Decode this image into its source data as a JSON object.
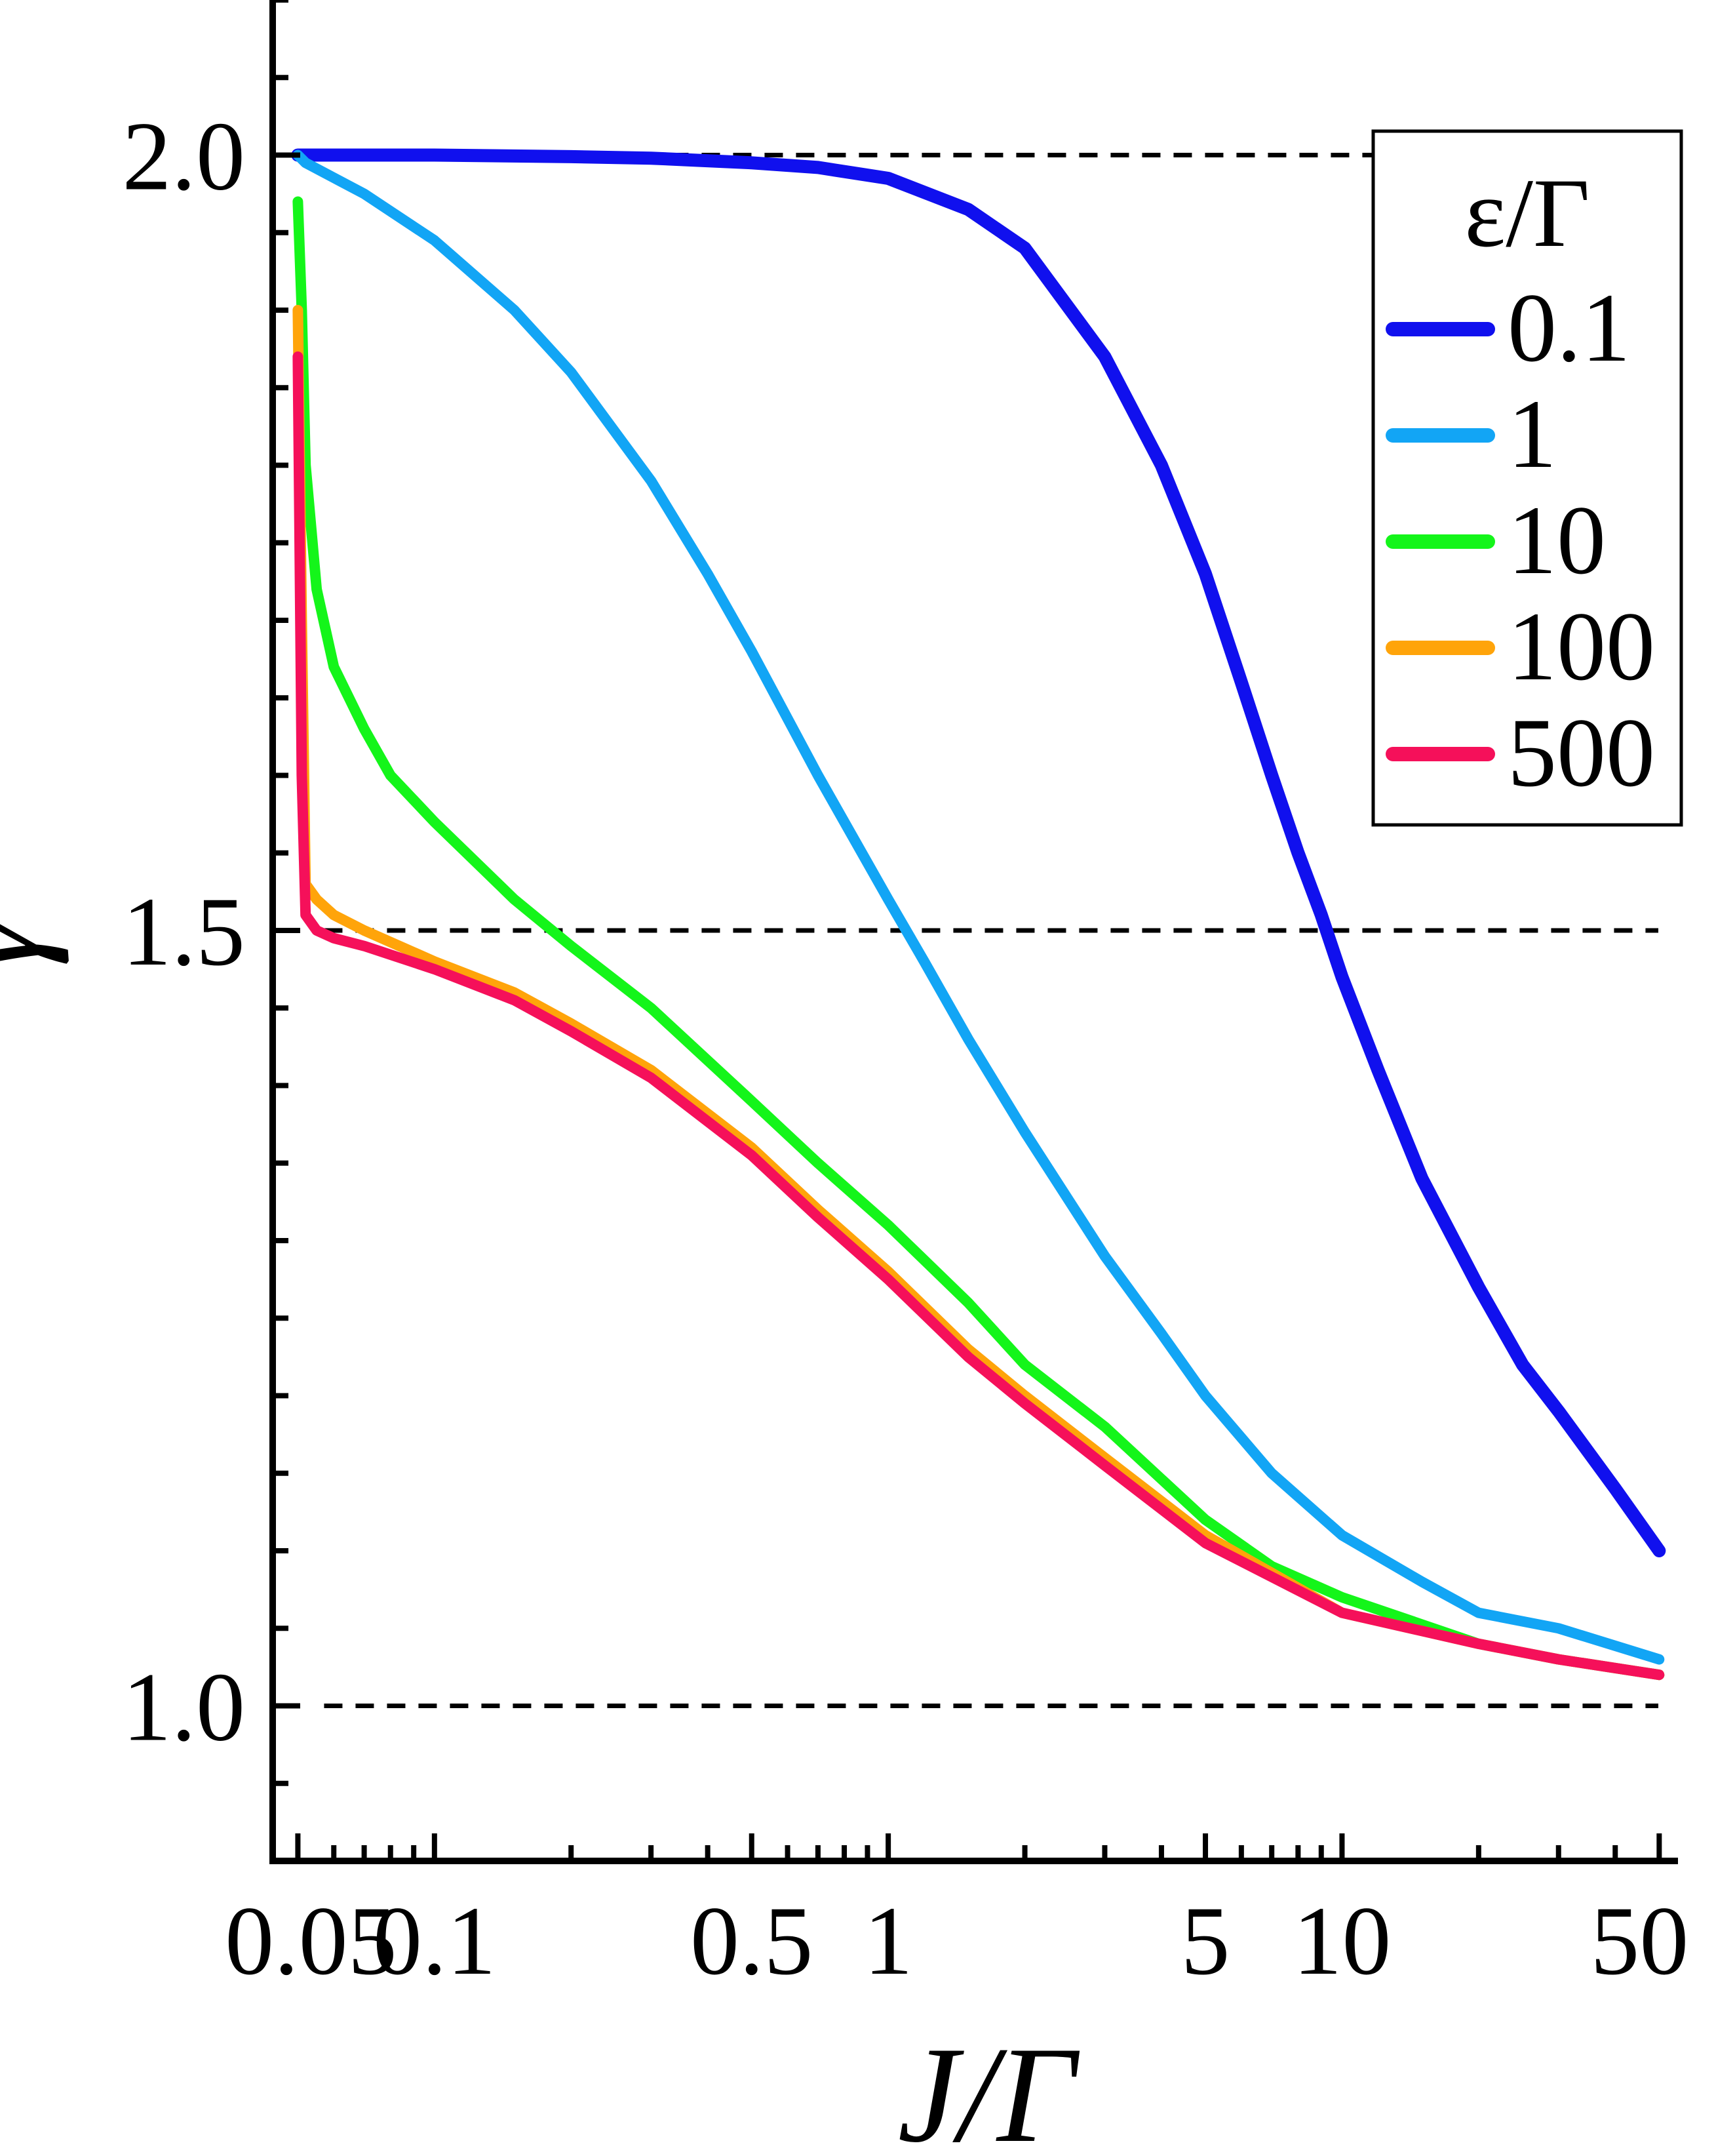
{
  "chart_data": {
    "type": "line",
    "xlabel": "J/Γ",
    "ylabel": "γ",
    "xscale": "log",
    "xlim": [
      0.044,
      55
    ],
    "ylim": [
      0.9,
      2.1
    ],
    "x_ticks": [
      {
        "value": 0.05,
        "label": "0.05"
      },
      {
        "value": 0.1,
        "label": "0.1"
      },
      {
        "value": 0.5,
        "label": "0.5"
      },
      {
        "value": 1,
        "label": "1"
      },
      {
        "value": 5,
        "label": "5"
      },
      {
        "value": 10,
        "label": "10"
      },
      {
        "value": 50,
        "label": "50"
      }
    ],
    "y_ticks": [
      {
        "value": 1.0,
        "label": "1.0"
      },
      {
        "value": 1.5,
        "label": "1.5"
      },
      {
        "value": 2.0,
        "label": "2.0"
      }
    ],
    "reference_lines": [
      2.0,
      1.5,
      1.0
    ],
    "legend": {
      "title": "ε/Γ",
      "position": "top-right"
    },
    "series": [
      {
        "name": "0.1",
        "color": "#1010ee",
        "x": [
          0.05,
          0.1,
          0.2,
          0.3,
          0.5,
          0.7,
          1,
          1.5,
          2,
          3,
          4,
          5,
          6,
          7,
          8,
          9,
          10,
          12,
          15,
          20,
          25,
          30,
          40,
          50
        ],
        "y": [
          2.0,
          2.0,
          1.999,
          1.998,
          1.995,
          1.992,
          1.985,
          1.965,
          1.94,
          1.87,
          1.8,
          1.73,
          1.66,
          1.6,
          1.55,
          1.51,
          1.47,
          1.41,
          1.34,
          1.27,
          1.22,
          1.19,
          1.14,
          1.1
        ]
      },
      {
        "name": "1",
        "color": "#12a5f5",
        "x": [
          0.05,
          0.052,
          0.07,
          0.1,
          0.15,
          0.2,
          0.3,
          0.4,
          0.5,
          0.7,
          1,
          1.2,
          1.5,
          2,
          3,
          4,
          5,
          7,
          10,
          15,
          20,
          30,
          50
        ],
        "y": [
          2.0,
          1.995,
          1.975,
          1.945,
          1.9,
          1.86,
          1.79,
          1.73,
          1.68,
          1.6,
          1.52,
          1.48,
          1.43,
          1.37,
          1.29,
          1.24,
          1.2,
          1.15,
          1.11,
          1.08,
          1.06,
          1.05,
          1.03
        ]
      },
      {
        "name": "10",
        "color": "#14f51a",
        "x": [
          0.05,
          0.051,
          0.052,
          0.055,
          0.06,
          0.07,
          0.08,
          0.1,
          0.15,
          0.2,
          0.3,
          0.5,
          0.7,
          1,
          1.5,
          2,
          3,
          5,
          7,
          10,
          20,
          30,
          50
        ],
        "y": [
          1.97,
          1.9,
          1.8,
          1.72,
          1.67,
          1.63,
          1.6,
          1.57,
          1.52,
          1.49,
          1.45,
          1.39,
          1.35,
          1.31,
          1.26,
          1.22,
          1.18,
          1.12,
          1.09,
          1.07,
          1.04,
          1.03,
          1.02
        ]
      },
      {
        "name": "100",
        "color": "#ffa40a",
        "x": [
          0.05,
          0.051,
          0.052,
          0.055,
          0.06,
          0.07,
          0.1,
          0.15,
          0.2,
          0.3,
          0.5,
          0.7,
          1,
          1.5,
          2,
          3,
          5,
          10,
          20,
          30,
          50
        ],
        "y": [
          1.9,
          1.7,
          1.53,
          1.52,
          1.51,
          1.5,
          1.48,
          1.46,
          1.44,
          1.41,
          1.36,
          1.32,
          1.28,
          1.23,
          1.2,
          1.16,
          1.11,
          1.06,
          1.04,
          1.03,
          1.02
        ]
      },
      {
        "name": "500",
        "color": "#f5105a",
        "x": [
          0.05,
          0.051,
          0.052,
          0.055,
          0.06,
          0.07,
          0.1,
          0.15,
          0.2,
          0.3,
          0.5,
          0.7,
          1,
          1.5,
          2,
          3,
          5,
          10,
          20,
          30,
          50
        ],
        "y": [
          1.87,
          1.6,
          1.51,
          1.5,
          1.495,
          1.49,
          1.475,
          1.455,
          1.435,
          1.405,
          1.355,
          1.315,
          1.275,
          1.225,
          1.195,
          1.155,
          1.105,
          1.06,
          1.04,
          1.03,
          1.02
        ]
      }
    ]
  }
}
